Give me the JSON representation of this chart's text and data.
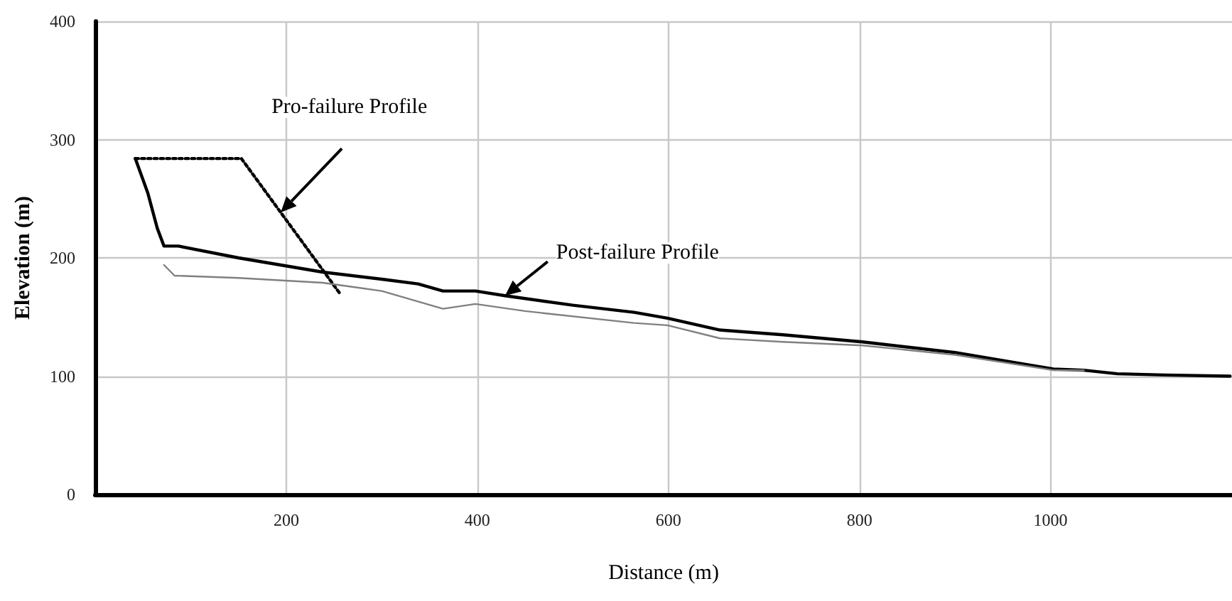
{
  "chart_data": {
    "type": "line",
    "xlabel": "Distance (m)",
    "ylabel": "Elevation (m)",
    "xlim": [
      0,
      1190
    ],
    "xticks": [
      200,
      400,
      600,
      800,
      1000
    ],
    "ylim": [
      0,
      400
    ],
    "yticks": [
      0,
      100,
      200,
      300,
      400
    ],
    "grid": true,
    "marker": "none",
    "series": [
      {
        "name": "Pro-failure Profile",
        "color": "#000000",
        "line_style": "dotted",
        "x": [
          42,
          153,
          256
        ],
        "values": [
          284,
          284,
          170
        ]
      },
      {
        "name": "Post-failure Profile",
        "color": "#000000",
        "line_style": "solid",
        "x": [
          42,
          55,
          65,
          72,
          87,
          150,
          238,
          300,
          338,
          364,
          398,
          429,
          500,
          564,
          599,
          654,
          720,
          803,
          900,
          1003,
          1035,
          1070,
          1120,
          1188
        ],
        "values": [
          284,
          255,
          225,
          210,
          210,
          200,
          188,
          182,
          178,
          172,
          172,
          168,
          160,
          154,
          149,
          139,
          135,
          129,
          120,
          106,
          105,
          102,
          101,
          100
        ]
      },
      {
        "color": "#808080",
        "line_style": "solid",
        "x": [
          72,
          83,
          150,
          238,
          300,
          364,
          398,
          450,
          564,
          599,
          654,
          720,
          803,
          900,
          1003,
          1035
        ],
        "values": [
          194,
          185,
          183,
          179,
          172,
          157,
          161,
          155,
          145,
          143,
          132,
          129,
          126,
          118,
          105,
          105
        ]
      }
    ]
  }
}
